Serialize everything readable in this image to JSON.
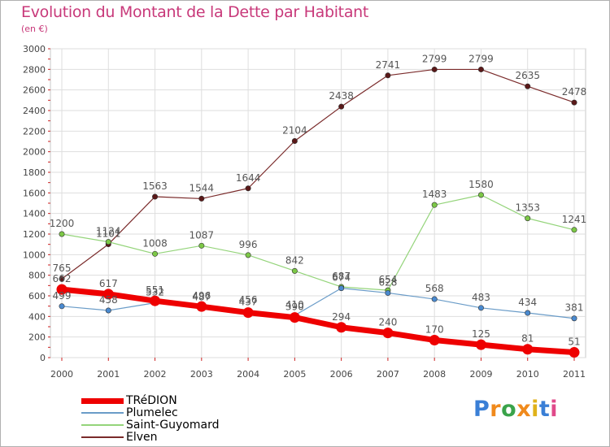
{
  "title": "Evolution du Montant de la Dette par Habitant",
  "subtitle": "(en €)",
  "logo": {
    "letters": [
      "P",
      "r",
      "o",
      "x",
      "i",
      "t",
      "i"
    ],
    "colors": [
      "#3a7fd6",
      "#f08a1c",
      "#3aa34a",
      "#f08a1c",
      "#e0b21a",
      "#3a7fd6",
      "#e04a8a"
    ]
  },
  "chart_data": {
    "type": "line",
    "x": [
      "2000",
      "2001",
      "2002",
      "2003",
      "2004",
      "2005",
      "2006",
      "2007",
      "2008",
      "2009",
      "2010",
      "2011"
    ],
    "ylim": [
      0,
      3000
    ],
    "yticks": [
      0,
      200,
      400,
      600,
      800,
      1000,
      1200,
      1400,
      1600,
      1800,
      2000,
      2200,
      2400,
      2600,
      2800,
      3000
    ],
    "grid": true,
    "legend_position": "bottom-left",
    "series": [
      {
        "name": "Elven",
        "color": "#7a2a2a",
        "marker": "#5a1818",
        "width": 1.2,
        "values": [
          765,
          1101,
          1563,
          1544,
          1644,
          2104,
          2438,
          2741,
          2799,
          2799,
          2635,
          2478
        ]
      },
      {
        "name": "Saint-Guyomard",
        "color": "#94d47a",
        "marker": "#7cc846",
        "width": 1.2,
        "values": [
          1200,
          1124,
          1008,
          1087,
          996,
          842,
          687,
          654,
          1483,
          1580,
          1353,
          1241
        ]
      },
      {
        "name": "Plumelec",
        "color": "#6a9cc8",
        "marker": "#4a8ad0",
        "width": 1.2,
        "values": [
          499,
          458,
          532,
          487,
          456,
          410,
          674,
          628,
          568,
          483,
          434,
          381
        ]
      },
      {
        "name": "TRéDION",
        "color": "#ee0000",
        "marker": "#ee0000",
        "width": 7,
        "values": [
          662,
          617,
          551,
          496,
          437,
          390,
          294,
          240,
          170,
          125,
          81,
          51
        ]
      }
    ]
  }
}
